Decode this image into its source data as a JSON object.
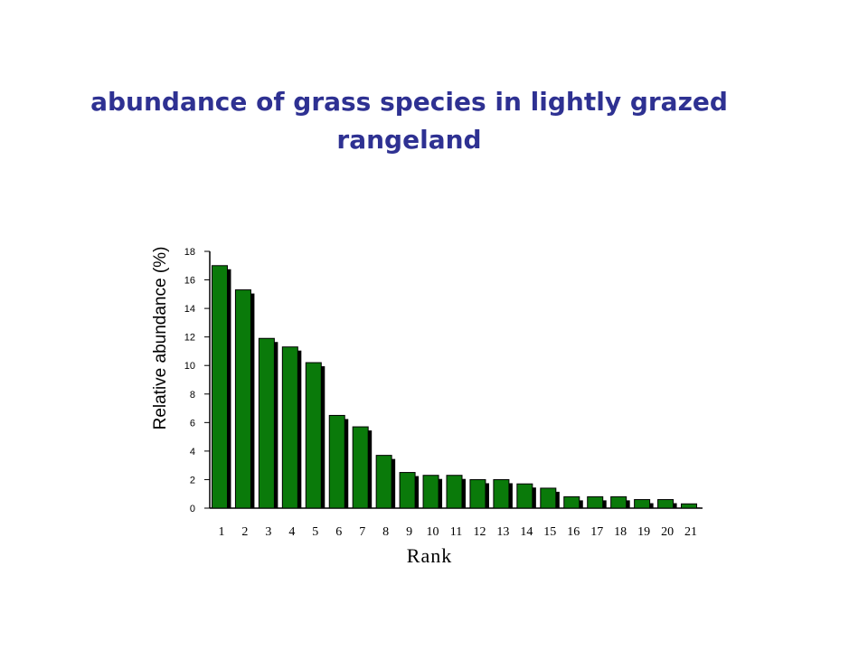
{
  "title_line1": "abundance of grass species in lightly grazed",
  "title_line2": "rangeland",
  "colors": {
    "title": "#2e3192",
    "bar_fill": "#0a7a0a",
    "bar_shadow": "#000000"
  },
  "chart_data": {
    "type": "bar",
    "title": "abundance of grass species in lightly grazed rangeland",
    "xlabel": "Rank",
    "ylabel": "Relative abundance (%)",
    "ylim": [
      0,
      18
    ],
    "yticks": [
      0,
      2,
      4,
      6,
      8,
      10,
      12,
      14,
      16,
      18
    ],
    "categories": [
      "1",
      "2",
      "3",
      "4",
      "5",
      "6",
      "7",
      "8",
      "9",
      "10",
      "11",
      "12",
      "13",
      "14",
      "15",
      "16",
      "17",
      "18",
      "19",
      "20",
      "21"
    ],
    "values": [
      17.0,
      15.3,
      11.9,
      11.3,
      10.2,
      6.5,
      5.7,
      3.7,
      2.5,
      2.3,
      2.3,
      2.0,
      2.0,
      1.7,
      1.4,
      0.8,
      0.8,
      0.8,
      0.6,
      0.6,
      0.3
    ],
    "grid": false,
    "legend": "none"
  }
}
